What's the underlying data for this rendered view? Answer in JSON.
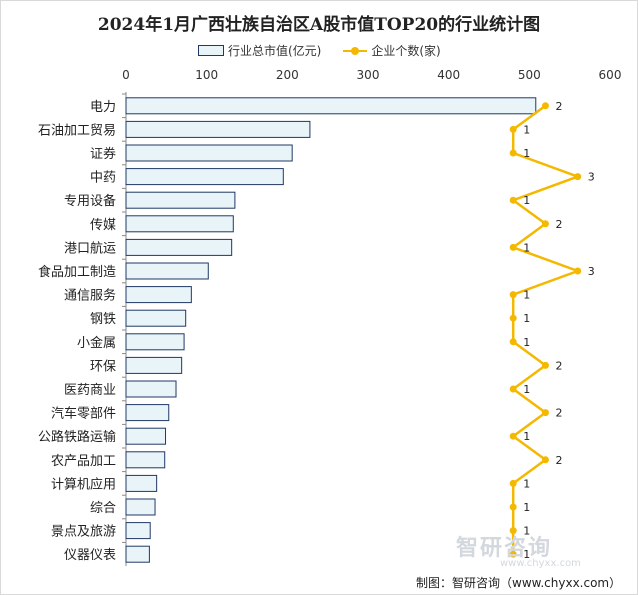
{
  "title": "2024年1月广西壮族自治区A股市值TOP20的行业统计图",
  "source": "制图：智研咨询（www.chyxx.com）",
  "watermark": {
    "text": "智研咨询",
    "url": "www.chyxx.com"
  },
  "colors": {
    "bar_fill": "#e9f4f9",
    "bar_stroke": "#1f3864",
    "line": "#f5b800",
    "axis": "#333333"
  },
  "chart_data": {
    "type": "bar",
    "orientation": "horizontal",
    "categories": [
      "电力",
      "石油加工贸易",
      "证券",
      "中药",
      "专用设备",
      "传媒",
      "港口航运",
      "食品加工制造",
      "通信服务",
      "钢铁",
      "小金属",
      "环保",
      "医药商业",
      "汽车零部件",
      "公路铁路运输",
      "农产品加工",
      "计算机应用",
      "综合",
      "景点及旅游",
      "仪器仪表"
    ],
    "series": [
      {
        "name": "行业总市值(亿元)",
        "type": "bar",
        "values": [
          508,
          228,
          206,
          195,
          135,
          133,
          131,
          102,
          81,
          74,
          72,
          69,
          62,
          53,
          49,
          48,
          38,
          36,
          30,
          29
        ]
      },
      {
        "name": "企业个数(家)",
        "type": "line",
        "values": [
          2,
          1,
          1,
          3,
          1,
          2,
          1,
          3,
          1,
          1,
          1,
          2,
          1,
          2,
          1,
          2,
          1,
          1,
          1,
          1
        ]
      }
    ],
    "x_axis": {
      "min": 0,
      "max": 600,
      "ticks": [
        "0",
        "100",
        "200",
        "300",
        "400",
        "500",
        "600"
      ],
      "position": "top"
    },
    "secondary_axis": {
      "min": -11,
      "max": 4
    },
    "legend": "top-center",
    "grid": false
  }
}
